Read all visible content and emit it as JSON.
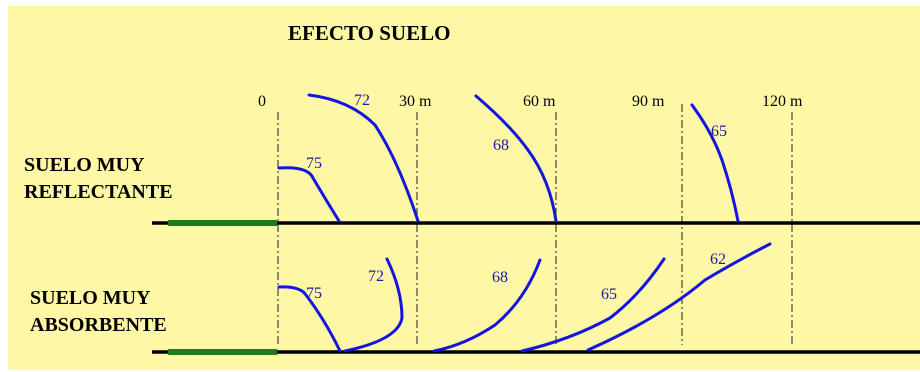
{
  "title": "EFECTO SUELO",
  "distance_ticks": [
    "0",
    "30 m",
    "60 m",
    "90 m",
    "120 m"
  ],
  "rows": {
    "reflective": {
      "label_line1": "SUELO MUY",
      "label_line2": "REFLECTANTE",
      "curve_labels": [
        "75",
        "72",
        "68",
        "65"
      ]
    },
    "absorbent": {
      "label_line1": "SUELO MUY",
      "label_line2": "ABSORBENTE",
      "curve_labels": [
        "75",
        "72",
        "68",
        "65",
        "62"
      ]
    }
  },
  "colors": {
    "background": "#fdf7a6",
    "curve": "#1515e0",
    "curve_label": "#1b1ba8",
    "source": "#1f7a1f",
    "ground": "#000000"
  }
}
